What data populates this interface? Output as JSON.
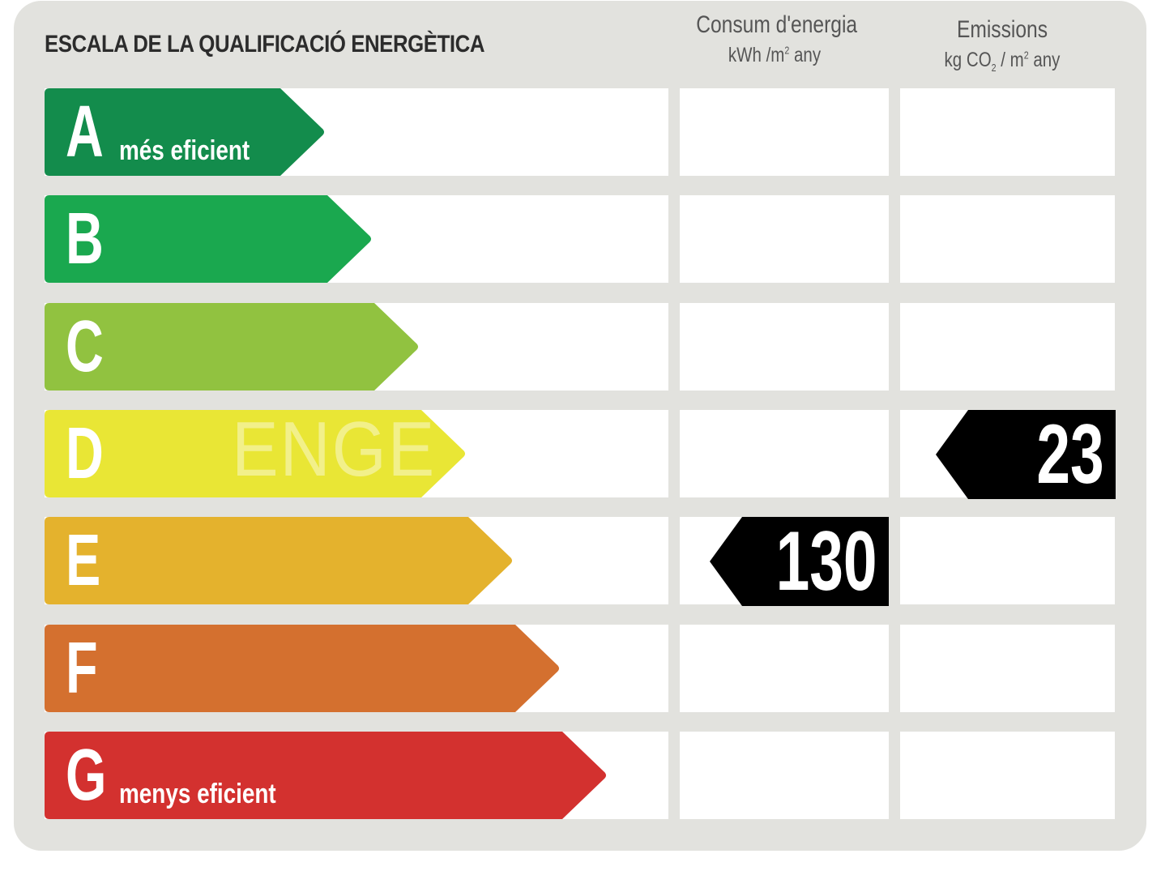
{
  "title": "ESCALA DE LA QUALIFICACIÓ ENERGÈTICA",
  "columns": {
    "consum": {
      "title": "Consum d'energia",
      "unit_a": "kWh /m",
      "unit_sup": "2",
      "unit_b": " any"
    },
    "emissions": {
      "title": "Emissions",
      "unit_a": "kg CO",
      "unit_sub": "2",
      "unit_b": " / m",
      "unit_sup": "2",
      "unit_c": " any"
    }
  },
  "ratings": [
    {
      "letter": "A",
      "label": "més eficient",
      "color": "#138c4c"
    },
    {
      "letter": "B",
      "label": "",
      "color": "#1aa84f"
    },
    {
      "letter": "C",
      "label": "",
      "color": "#91c240"
    },
    {
      "letter": "D",
      "label": "",
      "color": "#e9e635"
    },
    {
      "letter": "E",
      "label": "",
      "color": "#e4b22d"
    },
    {
      "letter": "F",
      "label": "",
      "color": "#d4702f"
    },
    {
      "letter": "G",
      "label": "menys eficient",
      "color": "#d3312f"
    }
  ],
  "consumption": {
    "value": "130",
    "rating": "E"
  },
  "emissions_value": {
    "value": "23",
    "rating": "D"
  },
  "watermark": "ENGE"
}
